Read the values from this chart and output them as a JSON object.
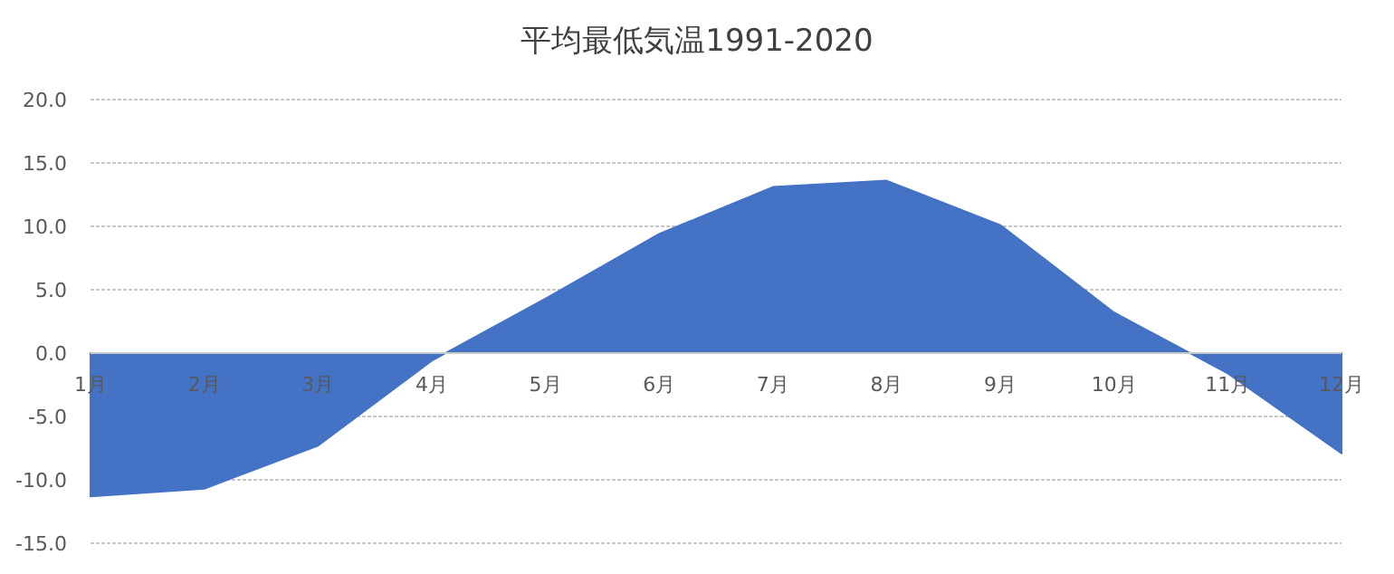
{
  "chart_data": {
    "type": "area",
    "title": "平均最低気温1991-2020",
    "categories": [
      "1月",
      "2月",
      "3月",
      "4月",
      "5月",
      "6月",
      "7月",
      "8月",
      "9月",
      "10月",
      "11月",
      "12月"
    ],
    "values": [
      -11.3,
      -10.7,
      -7.3,
      -0.6,
      4.3,
      9.4,
      13.1,
      13.6,
      10.1,
      3.2,
      -1.6,
      -7.9
    ],
    "color": "#4472c4",
    "ylim": [
      -15,
      20
    ],
    "yticks": [
      {
        "value": -15,
        "label": "-15.0"
      },
      {
        "value": -10,
        "label": "-10.0"
      },
      {
        "value": -5,
        "label": "-5.0"
      },
      {
        "value": 0,
        "label": "0.0"
      },
      {
        "value": 5,
        "label": "5.0"
      },
      {
        "value": 10,
        "label": "10.0"
      },
      {
        "value": 15,
        "label": "15.0"
      },
      {
        "value": 20,
        "label": "20.0"
      }
    ],
    "grid": "y"
  }
}
